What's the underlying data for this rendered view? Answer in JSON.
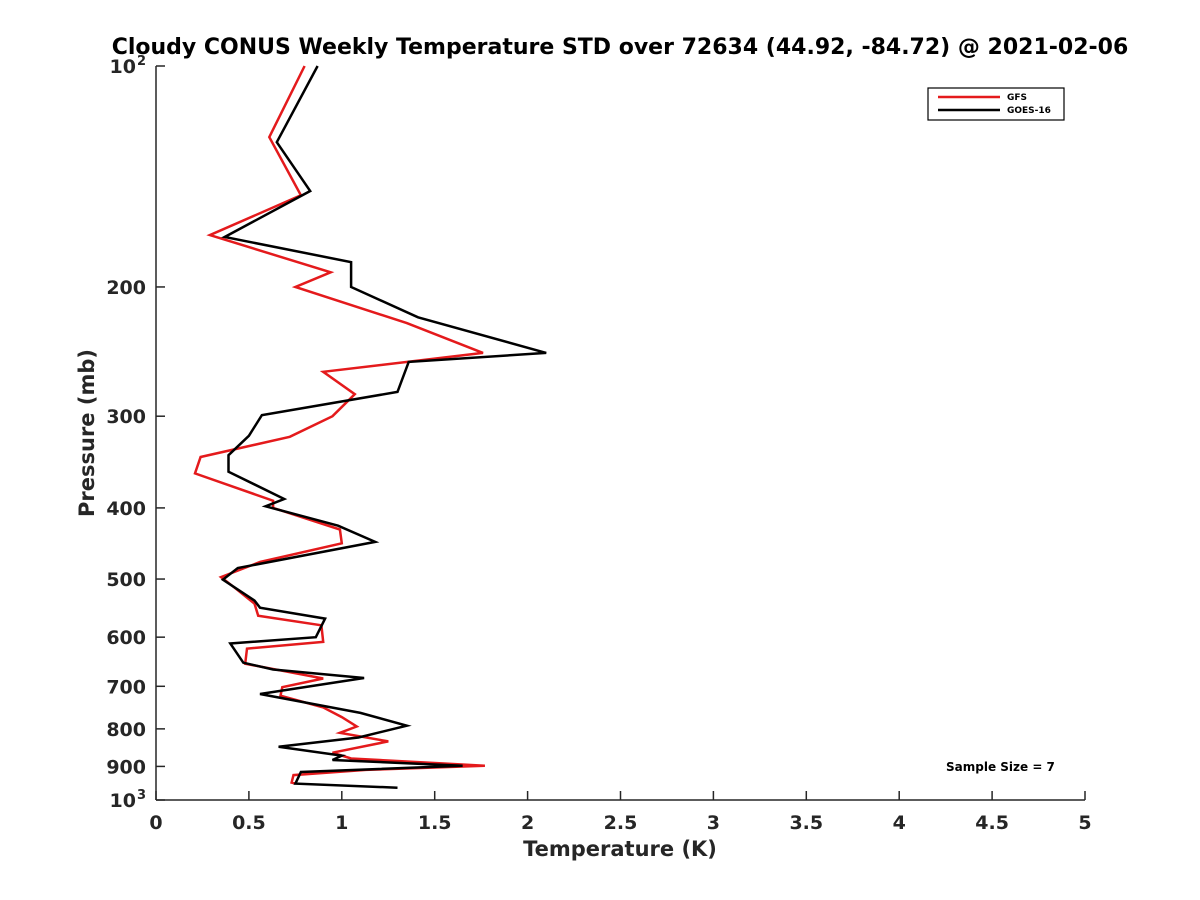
{
  "chart_data": {
    "type": "line",
    "title": "Cloudy CONUS Weekly Temperature STD over 72634 (44.92, -84.72) @ 2021-02-06",
    "xlabel": "Temperature (K)",
    "ylabel": "Pressure (mb)",
    "xlim": [
      0,
      5
    ],
    "ylim": [
      100,
      1000
    ],
    "y_scale": "log",
    "y_reversed": true,
    "x_ticks": [
      {
        "value": 0,
        "label": "0"
      },
      {
        "value": 0.5,
        "label": "0.5"
      },
      {
        "value": 1,
        "label": "1"
      },
      {
        "value": 1.5,
        "label": "1.5"
      },
      {
        "value": 2,
        "label": "2"
      },
      {
        "value": 2.5,
        "label": "2.5"
      },
      {
        "value": 3,
        "label": "3"
      },
      {
        "value": 3.5,
        "label": "3.5"
      },
      {
        "value": 4,
        "label": "4"
      },
      {
        "value": 4.5,
        "label": "4.5"
      },
      {
        "value": 5,
        "label": "5"
      }
    ],
    "y_ticks": [
      {
        "value": 100,
        "label": "10",
        "sup": "2"
      },
      {
        "value": 200,
        "label": "200",
        "sup": ""
      },
      {
        "value": 300,
        "label": "300",
        "sup": ""
      },
      {
        "value": 400,
        "label": "400",
        "sup": ""
      },
      {
        "value": 500,
        "label": "500",
        "sup": ""
      },
      {
        "value": 600,
        "label": "600",
        "sup": ""
      },
      {
        "value": 700,
        "label": "700",
        "sup": ""
      },
      {
        "value": 800,
        "label": "800",
        "sup": ""
      },
      {
        "value": 900,
        "label": "900",
        "sup": ""
      },
      {
        "value": 1000,
        "label": "10",
        "sup": "3"
      }
    ],
    "grid": false,
    "legend_position": "top-right",
    "series": [
      {
        "name": "GFS",
        "color": "#e41a1c",
        "points": [
          [
            0.8,
            100
          ],
          [
            0.61,
            125
          ],
          [
            0.78,
            150
          ],
          [
            0.29,
            170
          ],
          [
            0.94,
            191
          ],
          [
            0.75,
            200
          ],
          [
            1.35,
            224
          ],
          [
            1.76,
            246
          ],
          [
            0.9,
            261
          ],
          [
            1.07,
            280
          ],
          [
            0.95,
            300
          ],
          [
            0.72,
            320
          ],
          [
            0.24,
            341
          ],
          [
            0.21,
            359
          ],
          [
            0.63,
            391
          ],
          [
            0.63,
            400
          ],
          [
            0.99,
            428
          ],
          [
            1.0,
            447
          ],
          [
            0.56,
            474
          ],
          [
            0.35,
            497
          ],
          [
            0.42,
            513
          ],
          [
            0.53,
            540
          ],
          [
            0.55,
            561
          ],
          [
            0.89,
            578
          ],
          [
            0.9,
            609
          ],
          [
            0.49,
            622
          ],
          [
            0.48,
            652
          ],
          [
            0.9,
            683
          ],
          [
            0.68,
            702
          ],
          [
            0.67,
            721
          ],
          [
            0.9,
            748
          ],
          [
            1.0,
            771
          ],
          [
            1.08,
            794
          ],
          [
            0.99,
            810
          ],
          [
            1.25,
            832
          ],
          [
            0.95,
            862
          ],
          [
            1.05,
            878
          ],
          [
            1.77,
            898
          ],
          [
            1.13,
            910
          ],
          [
            0.74,
            925
          ],
          [
            0.73,
            947
          ],
          [
            0.75,
            950
          ]
        ]
      },
      {
        "name": "GOES-16",
        "color": "#000000",
        "points": [
          [
            0.87,
            100
          ],
          [
            0.65,
            127
          ],
          [
            0.83,
            148
          ],
          [
            0.37,
            171
          ],
          [
            1.05,
            185
          ],
          [
            1.05,
            200
          ],
          [
            1.41,
            220
          ],
          [
            2.1,
            246
          ],
          [
            1.36,
            253
          ],
          [
            1.3,
            278
          ],
          [
            0.57,
            299
          ],
          [
            0.5,
            319
          ],
          [
            0.39,
            339
          ],
          [
            0.39,
            357
          ],
          [
            0.69,
            389
          ],
          [
            0.59,
            398
          ],
          [
            0.98,
            423
          ],
          [
            1.18,
            445
          ],
          [
            0.44,
            483
          ],
          [
            0.36,
            501
          ],
          [
            0.53,
            535
          ],
          [
            0.56,
            547
          ],
          [
            0.91,
            566
          ],
          [
            0.86,
            600
          ],
          [
            0.4,
            612
          ],
          [
            0.47,
            650
          ],
          [
            0.63,
            664
          ],
          [
            1.12,
            682
          ],
          [
            0.56,
            717
          ],
          [
            1.1,
            761
          ],
          [
            1.35,
            792
          ],
          [
            1.09,
            822
          ],
          [
            0.66,
            846
          ],
          [
            1.0,
            870
          ],
          [
            0.95,
            882
          ],
          [
            1.65,
            898
          ],
          [
            0.78,
            916
          ],
          [
            0.75,
            950
          ],
          [
            1.3,
            962
          ]
        ]
      }
    ],
    "annotation": "Sample Size = 7"
  }
}
